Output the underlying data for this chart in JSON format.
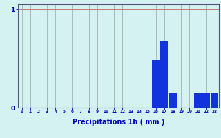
{
  "hours": [
    0,
    1,
    2,
    3,
    4,
    5,
    6,
    7,
    8,
    9,
    10,
    11,
    12,
    13,
    14,
    15,
    16,
    17,
    18,
    19,
    20,
    21,
    22,
    23
  ],
  "values": [
    0,
    0,
    0,
    0,
    0,
    0,
    0,
    0,
    0,
    0,
    0,
    0,
    0,
    0,
    0,
    0,
    0.48,
    0.68,
    0.15,
    0,
    0,
    0.15,
    0.15,
    0.15
  ],
  "bar_color": "#1133dd",
  "background_color": "#d4f2f2",
  "hgrid_color": "#cc7777",
  "vgrid_color": "#aabbbb",
  "axis_color": "#555577",
  "tick_color": "#0000bb",
  "label_color": "#0000bb",
  "xlabel": "Précipitations 1h ( mm )",
  "ylim": [
    0,
    1.05
  ],
  "ytick_vals": [
    0,
    1
  ],
  "ytick_labels": [
    "0",
    "1"
  ],
  "xlim": [
    -0.5,
    23.5
  ]
}
